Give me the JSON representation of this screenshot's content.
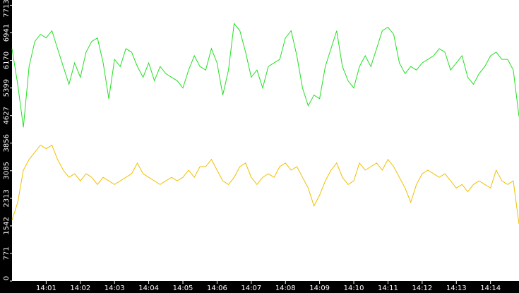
{
  "chart_data": {
    "type": "line",
    "categories": [
      null,
      null,
      null,
      null,
      null,
      null,
      "14:01",
      null,
      null,
      null,
      null,
      null,
      "14:02",
      null,
      null,
      null,
      null,
      null,
      "14:03",
      null,
      null,
      null,
      null,
      null,
      "14:04",
      null,
      null,
      null,
      null,
      null,
      "14:05",
      null,
      null,
      null,
      null,
      null,
      "14:06",
      null,
      null,
      null,
      null,
      null,
      "14:07",
      null,
      null,
      null,
      null,
      null,
      "14:08",
      null,
      null,
      null,
      null,
      null,
      "14:09",
      null,
      null,
      null,
      null,
      null,
      "14:10",
      null,
      null,
      null,
      null,
      null,
      "14:11",
      null,
      null,
      null,
      null,
      null,
      "14:12",
      null,
      null,
      null,
      null,
      null,
      "14:13",
      null,
      null,
      null,
      null,
      null,
      "14:14",
      null,
      null,
      null,
      null,
      null
    ],
    "series": [
      {
        "color": "#22e022",
        "values": [
          6500,
          5500,
          4300,
          6000,
          6700,
          6900,
          6800,
          7000,
          6500,
          6000,
          5500,
          6100,
          5700,
          6400,
          6700,
          6800,
          6100,
          5100,
          6200,
          6000,
          6500,
          6400,
          6000,
          5700,
          6100,
          5600,
          6000,
          5800,
          5700,
          5600,
          5400,
          5900,
          6300,
          6000,
          5900,
          6500,
          6100,
          5200,
          5900,
          7200,
          7000,
          6400,
          5700,
          5900,
          5400,
          6000,
          6100,
          6200,
          6800,
          7000,
          6300,
          5400,
          4900,
          5200,
          5100,
          6000,
          6500,
          7000,
          6000,
          5600,
          5400,
          6000,
          6300,
          6000,
          6500,
          7000,
          7100,
          6900,
          6100,
          5800,
          6000,
          5900,
          6100,
          6200,
          6300,
          6500,
          6400,
          5900,
          6100,
          6300,
          5700,
          5500,
          5800,
          6000,
          6300,
          6400,
          6200,
          6200,
          5900,
          4600
        ]
      },
      {
        "color": "#f0c000",
        "values": [
          1700,
          2200,
          3100,
          3400,
          3600,
          3800,
          3700,
          3800,
          3400,
          3100,
          2900,
          3000,
          2800,
          3000,
          2900,
          2700,
          2900,
          2800,
          2700,
          2800,
          2900,
          3000,
          3300,
          3000,
          2900,
          2800,
          2700,
          2800,
          2900,
          2800,
          2900,
          3100,
          2900,
          3200,
          3200,
          3400,
          3100,
          2800,
          2700,
          2900,
          3200,
          3300,
          2900,
          2700,
          2900,
          3000,
          2900,
          3200,
          3300,
          3100,
          3200,
          2900,
          2600,
          2100,
          2400,
          2800,
          3100,
          3300,
          2900,
          2700,
          2800,
          3300,
          3100,
          3200,
          3300,
          3100,
          3400,
          3200,
          2900,
          2600,
          2200,
          2700,
          3000,
          3100,
          3000,
          2900,
          3000,
          2800,
          2600,
          2700,
          2500,
          2700,
          2800,
          2700,
          2600,
          3100,
          2800,
          2700,
          2800,
          1600
        ]
      }
    ],
    "ylim": [
      0,
      7860
    ],
    "yticks": [
      0,
      771,
      1542,
      2313,
      3085,
      3856,
      4627,
      5399,
      6170,
      6941,
      7713
    ]
  }
}
